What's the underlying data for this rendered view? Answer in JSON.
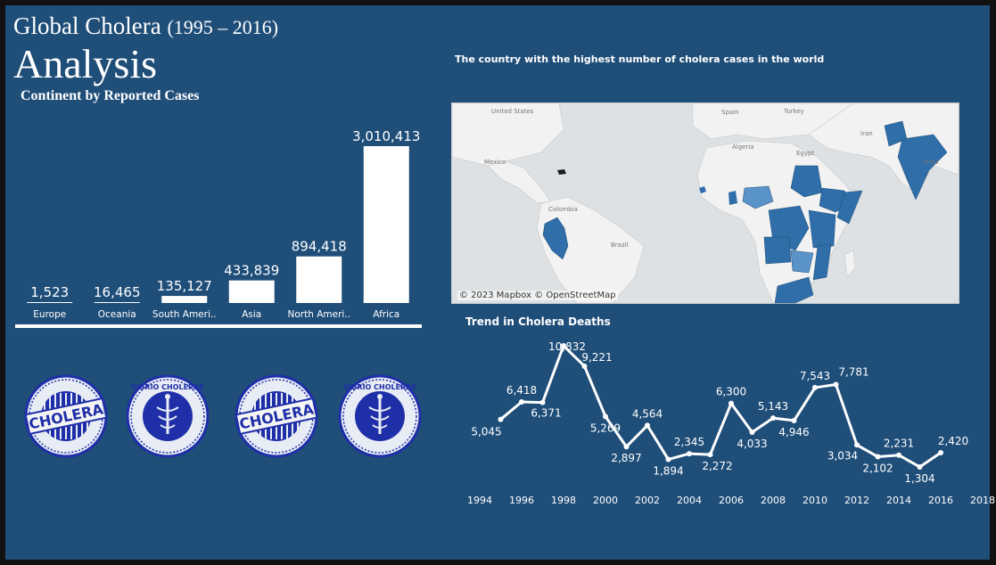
{
  "header": {
    "title_main": "Global Cholera",
    "title_years": "(1995 – 2016)",
    "title_sub": "Analysis",
    "bar_title": "Continent by Reported Cases"
  },
  "map": {
    "title": "The country with the highest number of cholera cases in the world",
    "attribution": "© 2023 Mapbox © OpenStreetMap",
    "labels": [
      "United States",
      "Mexico",
      "Colombia",
      "Brazil",
      "Spain",
      "Turkey",
      "Algeria",
      "Egypt",
      "Iran",
      "India"
    ]
  },
  "trend": {
    "title": "Trend in Cholera Deaths"
  },
  "stamps": [
    {
      "text": "CHOLERA"
    },
    {
      "text": "VIBRIO CHOLERAE"
    },
    {
      "text": "CHOLERA"
    },
    {
      "text": "VIBRIO CHOLERAE"
    }
  ],
  "colors": {
    "background": "#1f4e79",
    "bar": "#ffffff",
    "map_highlight": "#2f6ea8",
    "stamp": "#1f2fa8"
  },
  "chart_data": [
    {
      "type": "bar",
      "title": "Continent by Reported Cases",
      "categories": [
        "Europe",
        "Oceania",
        "South Ameri..",
        "Asia",
        "North Ameri..",
        "Africa"
      ],
      "values": [
        1523,
        16465,
        135127,
        433839,
        894418,
        3010413
      ],
      "value_labels": [
        "1,523",
        "16,465",
        "135,127",
        "433,839",
        "894,418",
        "3,010,413"
      ],
      "ylim": [
        0,
        3010413
      ]
    },
    {
      "type": "line",
      "title": "Trend in Cholera Deaths",
      "x": [
        1995,
        1996,
        1997,
        1998,
        1999,
        2000,
        2001,
        2002,
        2003,
        2004,
        2005,
        2006,
        2007,
        2008,
        2009,
        2010,
        2011,
        2012,
        2013,
        2014,
        2015,
        2016
      ],
      "values": [
        5045,
        6418,
        6371,
        10832,
        9221,
        5269,
        2897,
        4564,
        1894,
        2345,
        2272,
        6300,
        4033,
        5143,
        4946,
        7543,
        7781,
        3034,
        2102,
        2231,
        1304,
        2420
      ],
      "value_labels": [
        "5,045",
        "6,418",
        "6,371",
        "10,832",
        "9,221",
        "5,269",
        "2,897",
        "4,564",
        "1,894",
        "2,345",
        "2,272",
        "6,300",
        "4,033",
        "5,143",
        "4,946",
        "7,543",
        "7,781",
        "3,034",
        "2,102",
        "2,231",
        "1,304",
        "2,420"
      ],
      "xticks": [
        "1994",
        "1996",
        "1998",
        "2000",
        "2002",
        "2004",
        "2006",
        "2008",
        "2010",
        "2012",
        "2014",
        "2016",
        "2018"
      ],
      "xlim": [
        1994,
        2018
      ]
    }
  ]
}
